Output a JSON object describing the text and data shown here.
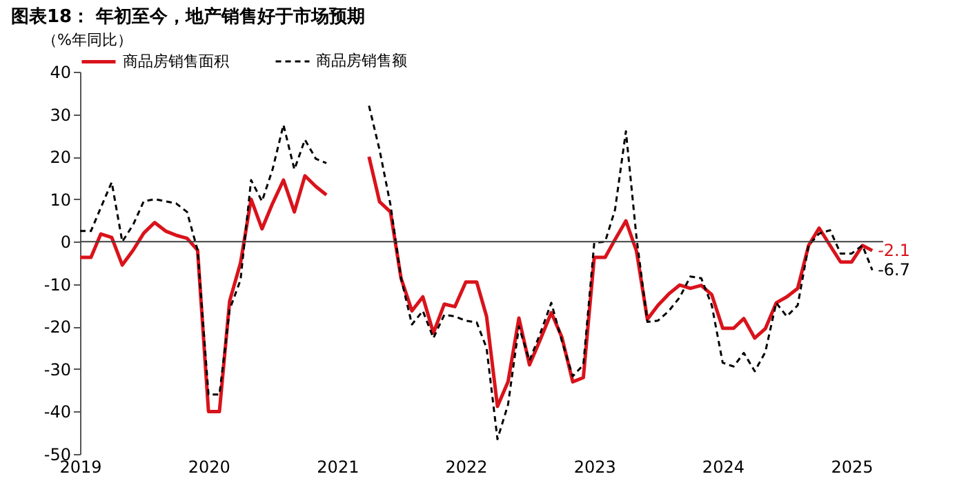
{
  "chart_data": {
    "type": "line",
    "title": "图表18：  年初至今，地产销售好于市场预期",
    "ylabel": "（%年同比）",
    "x": [
      "2019-01",
      "2019-02",
      "2019-03",
      "2019-04",
      "2019-05",
      "2019-06",
      "2019-07",
      "2019-08",
      "2019-09",
      "2019-10",
      "2019-11",
      "2019-12",
      "2020-01",
      "2020-02",
      "2020-03",
      "2020-04",
      "2020-05",
      "2020-06",
      "2020-07",
      "2020-08",
      "2020-09",
      "2020-10",
      "2020-11",
      "2020-12",
      "2021-01",
      "2021-02",
      "2021-03",
      "2021-04",
      "2021-05",
      "2021-06",
      "2021-07",
      "2021-08",
      "2021-09",
      "2021-10",
      "2021-11",
      "2021-12",
      "2022-01",
      "2022-02",
      "2022-03",
      "2022-04",
      "2022-05",
      "2022-06",
      "2022-07",
      "2022-08",
      "2022-09",
      "2022-10",
      "2022-11",
      "2022-12",
      "2023-01",
      "2023-02",
      "2023-03",
      "2023-04",
      "2023-05",
      "2023-06",
      "2023-07",
      "2023-08",
      "2023-09",
      "2023-10",
      "2023-11",
      "2023-12",
      "2024-01",
      "2024-02",
      "2024-03",
      "2024-04",
      "2024-05",
      "2024-06",
      "2024-07",
      "2024-08",
      "2024-09",
      "2024-10",
      "2024-11",
      "2024-12",
      "2025-01",
      "2025-02",
      "2025-03"
    ],
    "series": [
      {
        "name": "商品房销售面积",
        "color": "#d9131b",
        "line_style": "solid",
        "values": [
          -3.7,
          -3.7,
          1.8,
          1,
          -5.5,
          -2,
          2,
          4.5,
          2.5,
          1.5,
          0.8,
          -2,
          -40,
          -40,
          -14,
          -5,
          10,
          3,
          9,
          14.5,
          7,
          15.5,
          13,
          11,
          null,
          null,
          null,
          20,
          9.4,
          7,
          -8.6,
          -16.3,
          -13,
          -21.5,
          -14.7,
          -15.3,
          -9.5,
          -9.5,
          -17.6,
          -38.8,
          -33,
          -18,
          -29,
          -23,
          -16.7,
          -22.5,
          -33,
          -32,
          -3.7,
          -3.7,
          0.5,
          4.9,
          -2.2,
          -18.3,
          -15,
          -12.3,
          -10.2,
          -11,
          -10.3,
          -12.5,
          -20.4,
          -20.4,
          -18.1,
          -22.7,
          -20.5,
          -14.4,
          -13,
          -11,
          -0.9,
          3.2,
          -0.9,
          -4.8,
          -4.8,
          -0.9,
          -2.1
        ],
        "value_labels": [
          null,
          null,
          null,
          null,
          null,
          null,
          null,
          null,
          null,
          null,
          null,
          null,
          null,
          null,
          null,
          null,
          null,
          null,
          null,
          null,
          null,
          null,
          null,
          null,
          null,
          null,
          null,
          null,
          null,
          null,
          null,
          null,
          null,
          null,
          null,
          null,
          null,
          null,
          null,
          null,
          null,
          null,
          null,
          null,
          null,
          null,
          null,
          null,
          null,
          null,
          null,
          null,
          null,
          null,
          null,
          null,
          null,
          null,
          null,
          null,
          null,
          null,
          null,
          null,
          null,
          null,
          null,
          null,
          null,
          null,
          null,
          null,
          null,
          null,
          "-2.1"
        ]
      },
      {
        "name": "商品房销售额",
        "color": "#000000",
        "line_style": "dashed",
        "values": [
          2.5,
          2.5,
          8,
          14,
          0,
          4,
          9.5,
          10,
          9.5,
          9,
          7,
          -2,
          -36,
          -36,
          -16,
          -9,
          14.5,
          9.5,
          17,
          27.5,
          17,
          24,
          19.5,
          18.5,
          null,
          null,
          null,
          32,
          21.6,
          8.7,
          -8.6,
          -19.5,
          -16.3,
          -22.7,
          -17.2,
          -17.6,
          -18.6,
          -19,
          -25,
          -46.5,
          -38.4,
          -20,
          -28,
          -21.5,
          -14.4,
          -23.4,
          -31.7,
          -29,
          -0.3,
          0,
          7.5,
          26,
          1,
          -18.9,
          -18.6,
          -16.3,
          -13.1,
          -8.2,
          -8.6,
          -15,
          -28.5,
          -29.4,
          -26.2,
          -30.5,
          -26,
          -14.4,
          -17.6,
          -15,
          -0.9,
          1.9,
          2.7,
          -2.8,
          -2.8,
          -0.9,
          -6.7
        ],
        "value_labels": [
          null,
          null,
          null,
          null,
          null,
          null,
          null,
          null,
          null,
          null,
          null,
          null,
          null,
          null,
          null,
          null,
          null,
          null,
          null,
          null,
          null,
          null,
          null,
          null,
          null,
          null,
          null,
          null,
          null,
          null,
          null,
          null,
          null,
          null,
          null,
          null,
          null,
          null,
          null,
          null,
          null,
          null,
          null,
          null,
          null,
          null,
          null,
          null,
          null,
          null,
          null,
          null,
          null,
          null,
          null,
          null,
          null,
          null,
          null,
          null,
          null,
          null,
          null,
          null,
          null,
          null,
          null,
          null,
          null,
          null,
          null,
          null,
          null,
          null,
          "-6.7"
        ]
      }
    ],
    "xlim": [
      "2019-01",
      "2025-04"
    ],
    "xticks": [
      {
        "value": "2019-01",
        "label": "2019"
      },
      {
        "value": "2020-01",
        "label": "2020"
      },
      {
        "value": "2021-01",
        "label": "2021"
      },
      {
        "value": "2022-01",
        "label": "2022"
      },
      {
        "value": "2023-01",
        "label": "2023"
      },
      {
        "value": "2024-01",
        "label": "2024"
      },
      {
        "value": "2025-01",
        "label": "2025"
      }
    ],
    "ylim": [
      -50,
      40
    ],
    "yticks": [
      -50,
      -40,
      -30,
      -20,
      -10,
      0,
      10,
      20,
      30,
      40
    ],
    "ref_lines": [
      {
        "axis": "y",
        "value": 0,
        "color": "#404040"
      }
    ],
    "grid": false,
    "legend": "top",
    "marker": "none"
  }
}
